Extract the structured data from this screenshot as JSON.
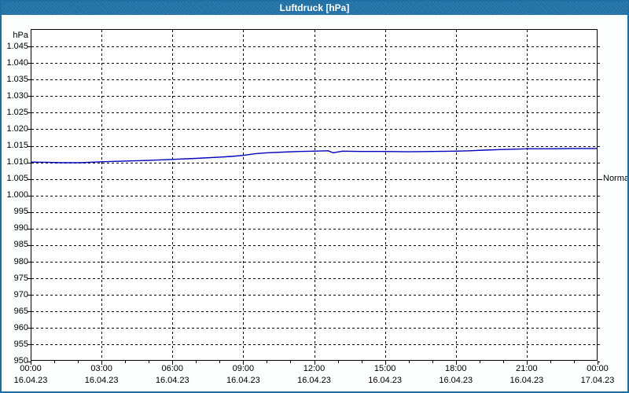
{
  "window": {
    "title": "Luftdruck [hPa]"
  },
  "colors": {
    "titlebar": "#2171a5",
    "window_border": "#1d6fa5",
    "plot_background": "#ffffff",
    "grid": "#000000",
    "axis": "#000000",
    "line": "#0000bb",
    "title_text": "#ffffff",
    "label_text": "#000000"
  },
  "chart_data": {
    "type": "line",
    "title": "Luftdruck [hPa]",
    "y_unit_label": "hPa",
    "ylim": [
      950,
      1050
    ],
    "ytick_step": 5,
    "ytick_values": [
      950,
      955,
      960,
      965,
      970,
      975,
      980,
      985,
      990,
      995,
      1000,
      1005,
      1010,
      1015,
      1020,
      1025,
      1030,
      1035,
      1040,
      1045
    ],
    "ytick_labels": [
      "950",
      "955",
      "960",
      "965",
      "970",
      "975",
      "980",
      "985",
      "990",
      "995",
      "1.000",
      "1.005",
      "1.010",
      "1.015",
      "1.020",
      "1.025",
      "1.030",
      "1.035",
      "1.040",
      "1.045"
    ],
    "xlim_hours": [
      0,
      24
    ],
    "grid": "dashed",
    "legend_position": "none",
    "minor_xtick_every_hours": 1,
    "xticks": [
      {
        "hour": 0,
        "time": "00:00",
        "date": "16.04.23"
      },
      {
        "hour": 3,
        "time": "03:00",
        "date": "16.04.23"
      },
      {
        "hour": 6,
        "time": "06:00",
        "date": "16.04.23"
      },
      {
        "hour": 9,
        "time": "09:00",
        "date": "16.04.23"
      },
      {
        "hour": 12,
        "time": "12:00",
        "date": "16.04.23"
      },
      {
        "hour": 15,
        "time": "15:00",
        "date": "16.04.23"
      },
      {
        "hour": 18,
        "time": "18:00",
        "date": "16.04.23"
      },
      {
        "hour": 21,
        "time": "21:00",
        "date": "16.04.23"
      },
      {
        "hour": 24,
        "time": "00:00",
        "date": "17.04.23"
      }
    ],
    "normal_marker": {
      "label": "Normal",
      "value": 1005
    },
    "series": [
      {
        "name": "Luftdruck",
        "color": "#0000bb",
        "points": [
          [
            0.0,
            1010.1
          ],
          [
            0.8,
            1010.0
          ],
          [
            1.3,
            1009.9
          ],
          [
            2.1,
            1009.9
          ],
          [
            2.7,
            1010.1
          ],
          [
            3.0,
            1010.2
          ],
          [
            4.0,
            1010.4
          ],
          [
            5.0,
            1010.6
          ],
          [
            6.0,
            1010.9
          ],
          [
            7.0,
            1011.2
          ],
          [
            8.0,
            1011.6
          ],
          [
            8.5,
            1011.8
          ],
          [
            9.0,
            1012.1
          ],
          [
            9.5,
            1012.6
          ],
          [
            10.0,
            1012.9
          ],
          [
            10.7,
            1013.1
          ],
          [
            11.4,
            1013.3
          ],
          [
            12.0,
            1013.4
          ],
          [
            12.6,
            1013.5
          ],
          [
            12.8,
            1012.9
          ],
          [
            13.2,
            1013.4
          ],
          [
            14.0,
            1013.3
          ],
          [
            15.0,
            1013.3
          ],
          [
            16.0,
            1013.2
          ],
          [
            17.0,
            1013.3
          ],
          [
            18.0,
            1013.4
          ],
          [
            18.6,
            1013.5
          ],
          [
            19.2,
            1013.7
          ],
          [
            20.0,
            1013.9
          ],
          [
            20.6,
            1014.0
          ],
          [
            21.0,
            1014.1
          ],
          [
            22.0,
            1014.1
          ],
          [
            23.0,
            1014.2
          ],
          [
            24.0,
            1014.2
          ]
        ]
      }
    ]
  }
}
